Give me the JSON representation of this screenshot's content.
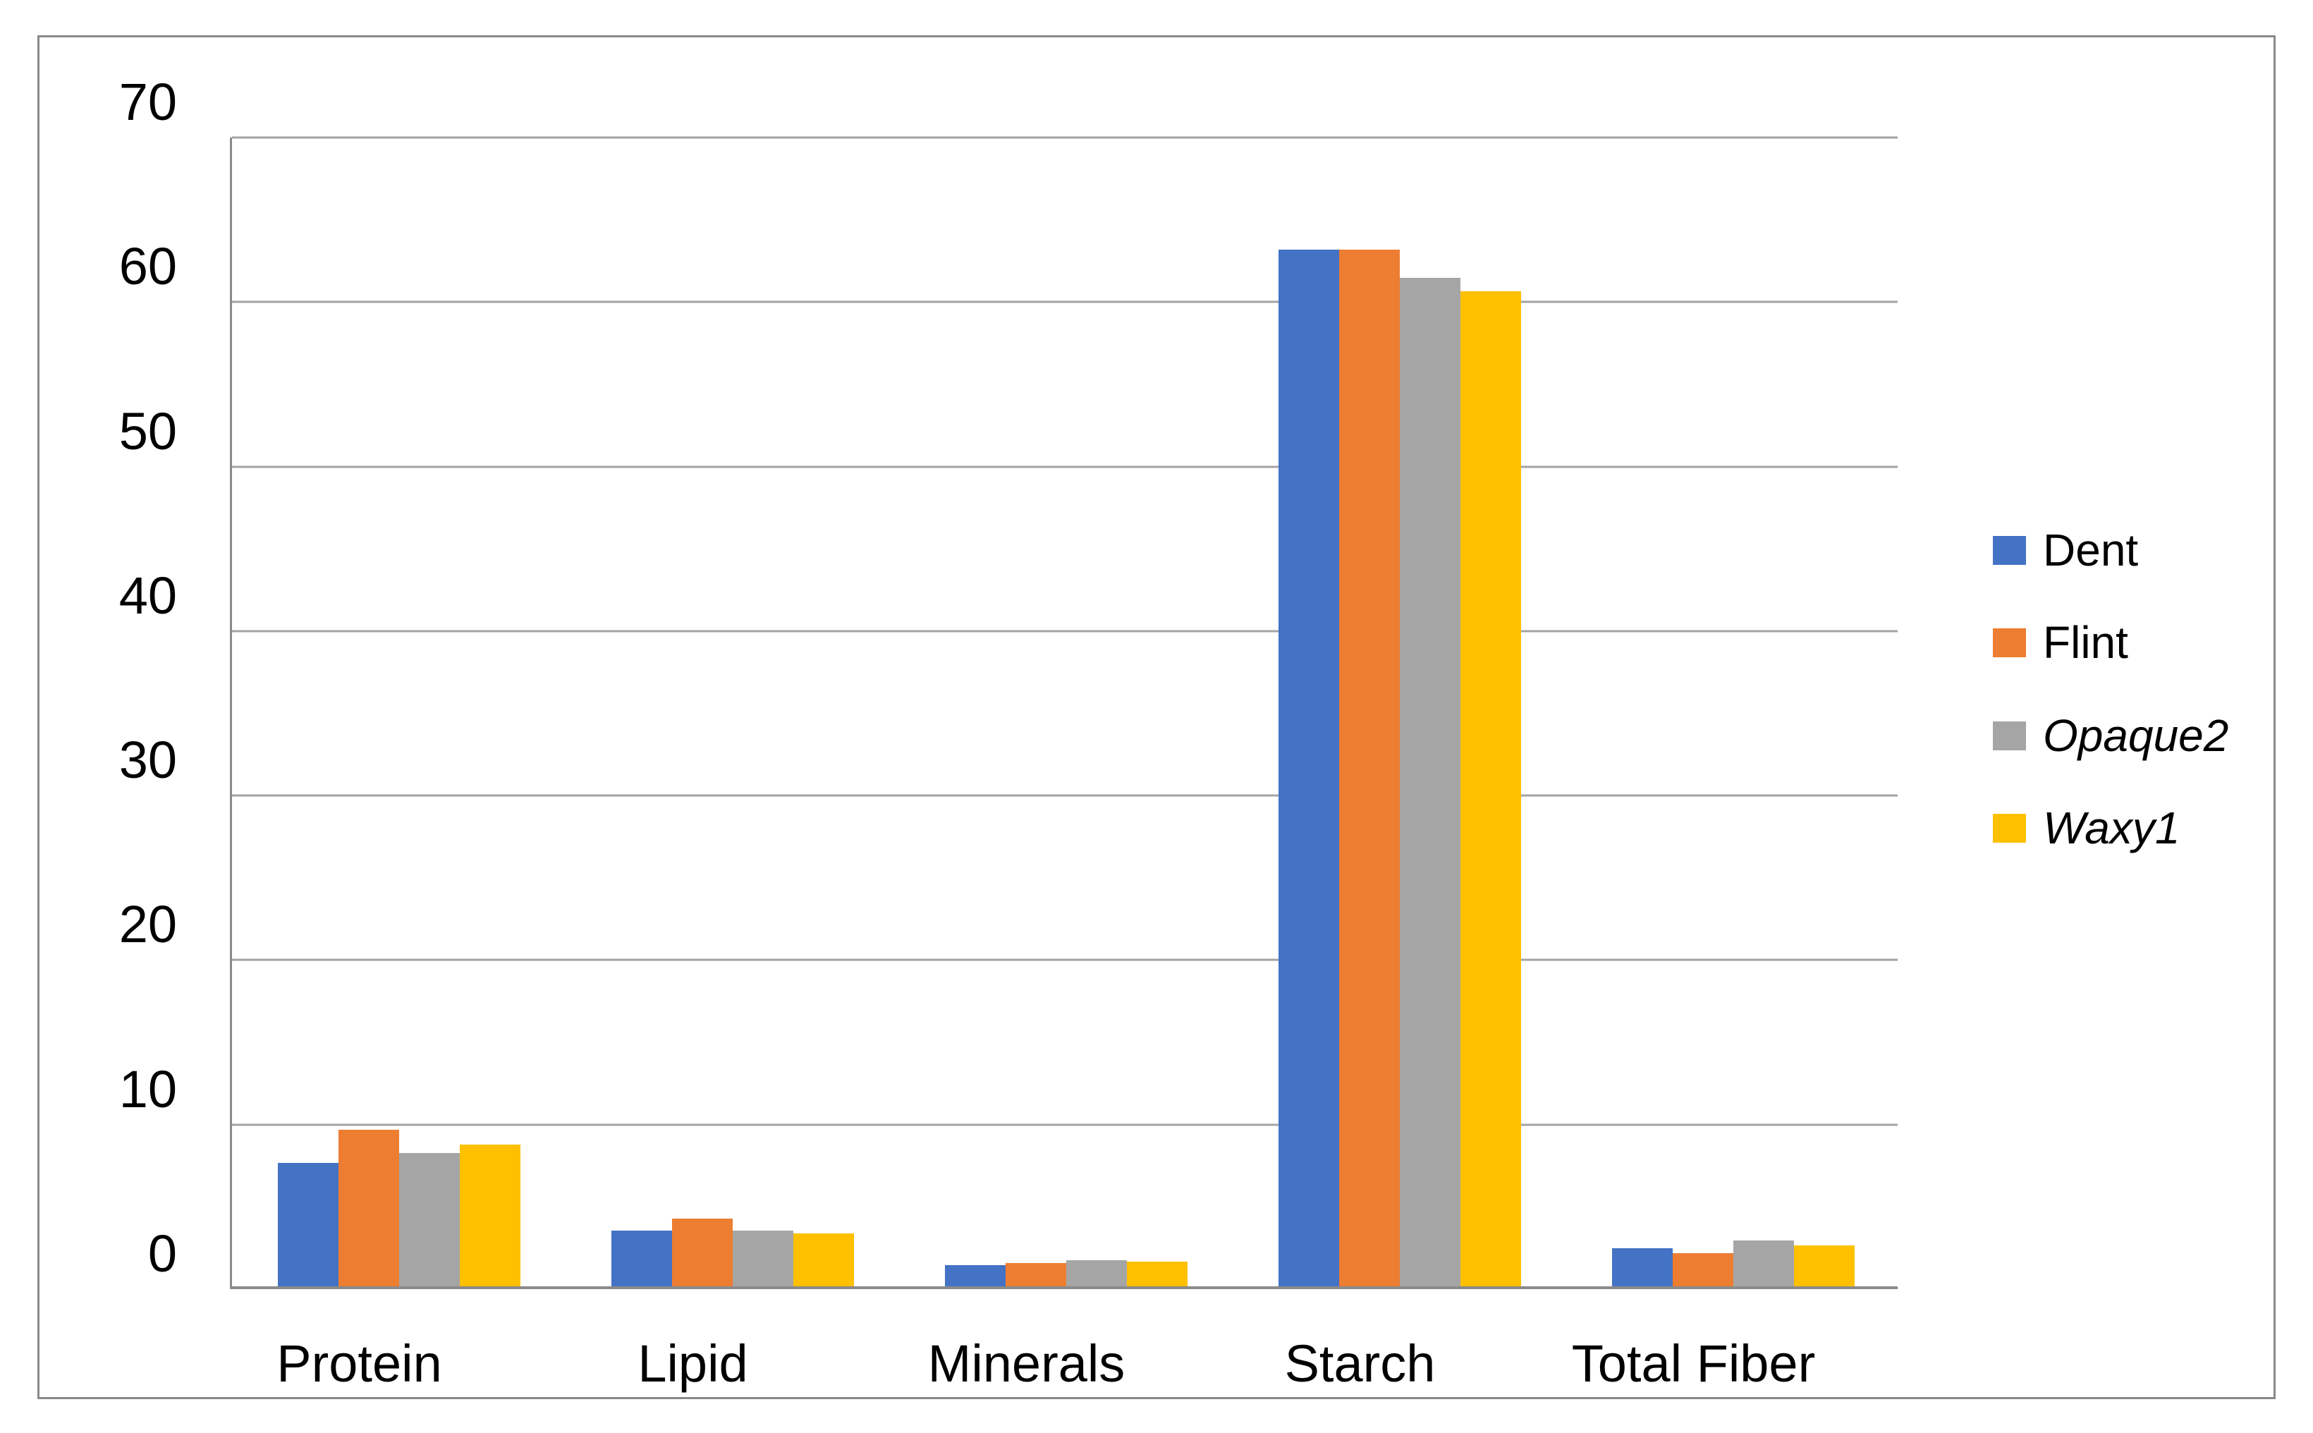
{
  "chart_data": {
    "type": "bar",
    "title": "",
    "xlabel": "",
    "ylabel": "",
    "categories": [
      "Protein",
      "Lipid",
      "Minerals",
      "Starch",
      "Total Fiber"
    ],
    "series": [
      {
        "name": "Dent",
        "color": "#4472C4",
        "italic": false,
        "values": [
          7.5,
          3.4,
          1.3,
          63.0,
          2.3
        ]
      },
      {
        "name": "Flint",
        "color": "#ED7D31",
        "italic": false,
        "values": [
          9.5,
          4.1,
          1.4,
          63.0,
          2.0
        ]
      },
      {
        "name": "Opaque2",
        "color": "#A5A5A5",
        "italic": true,
        "values": [
          8.1,
          3.4,
          1.6,
          61.3,
          2.8
        ]
      },
      {
        "name": "Waxy1",
        "color": "#FFC000",
        "italic": true,
        "values": [
          8.6,
          3.2,
          1.5,
          60.5,
          2.5
        ]
      }
    ],
    "y_axis": {
      "min": 0,
      "max": 70,
      "step": 10,
      "tick_labels": [
        "0",
        "10",
        "20",
        "30",
        "40",
        "50",
        "60",
        "70"
      ]
    },
    "grid": true,
    "legend_position": "right",
    "colors": {
      "gridline": "#A3A3A3",
      "axis": "#8A8A8A",
      "figure_border": "#898989",
      "text": "#000000",
      "background": "#FFFFFF"
    }
  }
}
